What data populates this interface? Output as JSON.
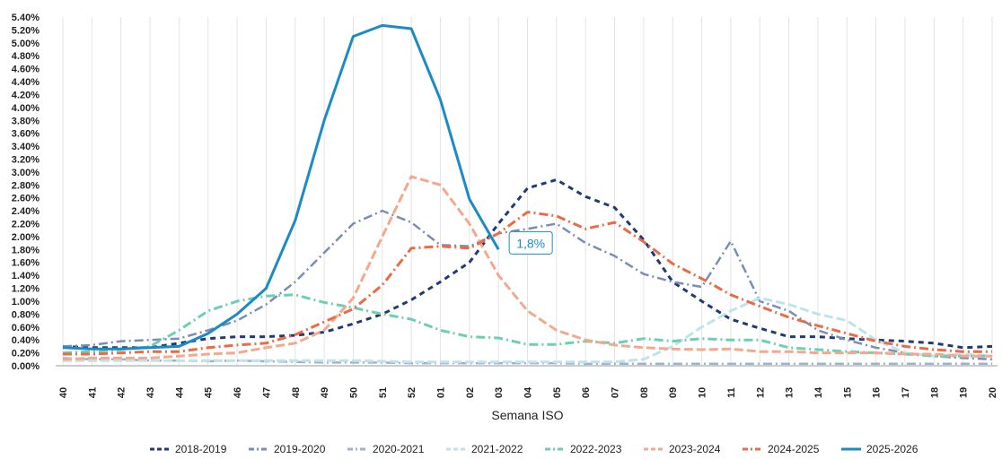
{
  "chart_data": {
    "type": "line",
    "xlabel": "Semana ISO",
    "ylabel": "",
    "ylim": [
      0,
      5.4
    ],
    "y_tick_step": 0.2,
    "y_tick_suffix": "%",
    "grid": {
      "horizontal": false,
      "vertical": true
    },
    "legend_position": "bottom",
    "categories": [
      "40",
      "41",
      "42",
      "43",
      "44",
      "45",
      "46",
      "47",
      "48",
      "49",
      "50",
      "51",
      "52",
      "01",
      "02",
      "03",
      "04",
      "05",
      "06",
      "07",
      "08",
      "09",
      "10",
      "11",
      "12",
      "13",
      "14",
      "15",
      "16",
      "17",
      "18",
      "19",
      "20"
    ],
    "series": [
      {
        "name": "2018-2019",
        "color": "#1f3b73",
        "dash": "6,5",
        "width": 3,
        "values": [
          0.3,
          0.28,
          0.28,
          0.28,
          0.35,
          0.42,
          0.45,
          0.45,
          0.47,
          0.52,
          0.65,
          0.8,
          1.02,
          1.3,
          1.6,
          2.2,
          2.75,
          2.88,
          2.62,
          2.45,
          1.95,
          1.3,
          1.0,
          0.72,
          0.58,
          0.45,
          0.45,
          0.42,
          0.4,
          0.38,
          0.35,
          0.28,
          0.3
        ]
      },
      {
        "name": "2019-2020",
        "color": "#7a8eb5",
        "dash": "10,4,2,4",
        "width": 2.5,
        "values": [
          0.3,
          0.32,
          0.38,
          0.4,
          0.42,
          0.55,
          0.7,
          0.95,
          1.3,
          1.75,
          2.2,
          2.4,
          2.22,
          1.87,
          1.85,
          2.05,
          2.12,
          2.2,
          1.9,
          1.7,
          1.42,
          1.3,
          1.22,
          1.93,
          1.0,
          0.85,
          0.55,
          0.4,
          0.28,
          0.2,
          0.15,
          0.12,
          0.1
        ]
      },
      {
        "name": "2020-2021",
        "color": "#9ab3cf",
        "dash": "10,4,2,4",
        "width": 2.5,
        "values": [
          0.12,
          0.1,
          0.1,
          0.08,
          0.08,
          0.07,
          0.08,
          0.07,
          0.06,
          0.05,
          0.05,
          0.05,
          0.04,
          0.04,
          0.04,
          0.04,
          0.04,
          0.04,
          0.03,
          0.03,
          0.03,
          0.03,
          0.03,
          0.03,
          0.03,
          0.03,
          0.03,
          0.03,
          0.03,
          0.03,
          0.03,
          0.03,
          0.03
        ]
      },
      {
        "name": "2021-2022",
        "color": "#bfe3ea",
        "dash": "10,4",
        "width": 3,
        "values": [
          0.08,
          0.08,
          0.08,
          0.08,
          0.08,
          0.08,
          0.08,
          0.08,
          0.08,
          0.08,
          0.08,
          0.07,
          0.06,
          0.06,
          0.06,
          0.06,
          0.06,
          0.06,
          0.06,
          0.06,
          0.1,
          0.3,
          0.6,
          0.85,
          1.05,
          0.95,
          0.8,
          0.7,
          0.4,
          0.2,
          0.15,
          0.18,
          0.15
        ]
      },
      {
        "name": "2022-2023",
        "color": "#6ccfb3",
        "dash": "10,4,2,4",
        "width": 3,
        "values": [
          0.2,
          0.22,
          0.25,
          0.3,
          0.55,
          0.85,
          1.0,
          1.08,
          1.1,
          0.98,
          0.9,
          0.8,
          0.72,
          0.55,
          0.45,
          0.43,
          0.33,
          0.33,
          0.38,
          0.35,
          0.42,
          0.38,
          0.42,
          0.4,
          0.4,
          0.28,
          0.25,
          0.22,
          0.2,
          0.18,
          0.15,
          0.15,
          0.15
        ]
      },
      {
        "name": "2023-2024",
        "color": "#f2a98e",
        "dash": "10,4",
        "width": 3,
        "values": [
          0.1,
          0.12,
          0.12,
          0.12,
          0.15,
          0.18,
          0.2,
          0.28,
          0.35,
          0.55,
          1.05,
          2.0,
          2.93,
          2.8,
          2.2,
          1.4,
          0.85,
          0.55,
          0.4,
          0.32,
          0.28,
          0.26,
          0.25,
          0.26,
          0.22,
          0.22,
          0.2,
          0.2,
          0.2,
          0.18,
          0.18,
          0.15,
          0.15
        ]
      },
      {
        "name": "2024-2025",
        "color": "#ea6b44",
        "dash": "10,4,2,4",
        "width": 3,
        "values": [
          0.18,
          0.18,
          0.2,
          0.22,
          0.22,
          0.28,
          0.32,
          0.35,
          0.48,
          0.68,
          0.88,
          1.25,
          1.82,
          1.85,
          1.82,
          2.05,
          2.38,
          2.32,
          2.12,
          2.22,
          1.92,
          1.58,
          1.35,
          1.1,
          0.92,
          0.75,
          0.62,
          0.5,
          0.38,
          0.3,
          0.25,
          0.22,
          0.22
        ]
      },
      {
        "name": "2025-2026",
        "color": "#1b8bc6",
        "dash": "",
        "width": 3,
        "values": [
          0.28,
          0.26,
          0.26,
          0.28,
          0.3,
          0.5,
          0.8,
          1.2,
          2.25,
          3.8,
          5.1,
          5.27,
          5.22,
          4.12,
          2.58,
          1.8,
          null,
          null,
          null,
          null,
          null,
          null,
          null,
          null,
          null,
          null,
          null,
          null,
          null,
          null,
          null,
          null,
          null
        ]
      }
    ],
    "annotations": [
      {
        "text": "1,8%",
        "series": "2025-2026",
        "category": "03",
        "value": 1.8
      }
    ]
  }
}
